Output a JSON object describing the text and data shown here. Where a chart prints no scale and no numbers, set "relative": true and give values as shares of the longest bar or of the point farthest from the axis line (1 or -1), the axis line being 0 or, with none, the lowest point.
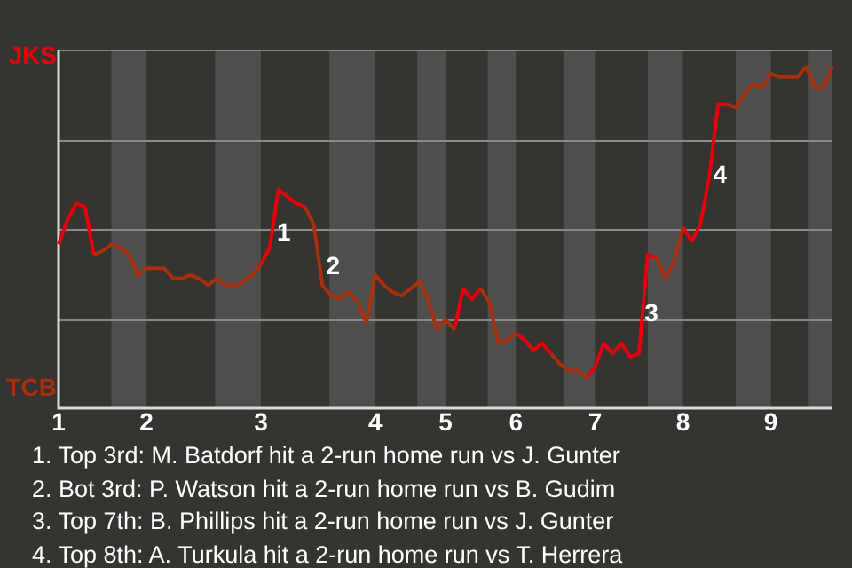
{
  "chart_data": {
    "type": "line",
    "relative": true,
    "categories": [
      "1",
      null,
      null,
      null,
      null,
      null,
      null,
      null,
      null,
      null,
      "2",
      null,
      null,
      null,
      null,
      null,
      null,
      null,
      null,
      null,
      null,
      null,
      null,
      "3",
      null,
      null,
      null,
      null,
      null,
      null,
      null,
      null,
      null,
      null,
      null,
      null,
      "4",
      null,
      null,
      null,
      null,
      null,
      null,
      null,
      "5",
      null,
      null,
      null,
      null,
      null,
      null,
      null,
      "6",
      null,
      null,
      null,
      null,
      null,
      null,
      null,
      null,
      "7",
      null,
      null,
      null,
      null,
      null,
      null,
      null,
      null,
      null,
      "8",
      null,
      null,
      null,
      null,
      null,
      null,
      null,
      null,
      null,
      "9",
      null,
      null,
      null,
      null,
      null,
      null,
      null
    ],
    "series": [
      {
        "color": "#a8300f",
        "values": [
          null,
          null,
          null,
          null,
          0.45,
          0.46,
          0.48,
          0.47,
          0.45,
          0.39,
          0.41,
          0.41,
          0.41,
          0.38,
          0.38,
          0.39,
          0.38,
          0.36,
          0.38,
          0.36,
          0.36,
          0.37,
          0.39,
          0.42,
          null,
          null,
          null,
          null,
          0.59,
          0.54,
          0.36,
          0.33,
          0.32,
          0.34,
          0.31,
          0.25,
          0.39,
          0.36,
          0.34,
          0.33,
          0.35,
          0.37,
          0.32,
          0.23,
          0.26,
          0.23,
          null,
          null,
          0.35,
          0.31,
          0.19,
          0.2,
          0.22,
          null,
          null,
          null,
          0.16,
          0.13,
          0.11,
          0.11,
          0.09,
          null,
          null,
          null,
          null,
          null,
          null,
          null,
          0.44,
          0.38,
          0.43,
          0.53,
          null,
          null,
          null,
          null,
          0.89,
          0.88,
          0.92,
          0.95,
          0.94,
          0.98,
          0.97,
          0.97,
          0.97,
          1,
          0.94,
          0.94,
          1
        ]
      },
      {
        "color": "#e8000b",
        "values": [
          0.48,
          0.55,
          0.6,
          0.59,
          0.45,
          null,
          null,
          null,
          null,
          null,
          null,
          null,
          null,
          null,
          null,
          null,
          null,
          null,
          null,
          null,
          null,
          null,
          null,
          0.42,
          0.47,
          0.64,
          0.62,
          0.6,
          0.59,
          null,
          null,
          null,
          null,
          null,
          null,
          null,
          0.39,
          0.36,
          null,
          null,
          null,
          null,
          null,
          null,
          null,
          0.23,
          0.35,
          0.32,
          0.35,
          null,
          null,
          null,
          0.22,
          0.2,
          0.17,
          0.19,
          0.16,
          null,
          null,
          null,
          0.09,
          0.12,
          0.19,
          0.16,
          0.19,
          0.15,
          0.16,
          0.45,
          0.44,
          null,
          null,
          0.53,
          0.49,
          0.54,
          0.68,
          0.89,
          0.89,
          null,
          null,
          null,
          null,
          null,
          null,
          null,
          null,
          null,
          null,
          null,
          null
        ]
      }
    ],
    "grid": true,
    "marker": "none",
    "line_style": "solid",
    "legend": false,
    "annotations": [
      "JKS",
      "TCB",
      "1",
      "2",
      "3",
      "4",
      "1. Top 3rd: M. Batdorf hit a 2-run home run vs J. Gunter",
      "2. Bot 3rd: P. Watson hit a 2-run home run vs B. Gudim",
      "3. Top 7th: B. Phillips hit a 2-run home run vs J. Gunter",
      "4. Top 8th: A. Turkula hit a 2-run home run vs T. Herrera"
    ]
  }
}
